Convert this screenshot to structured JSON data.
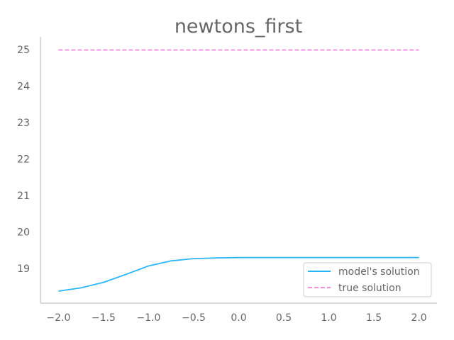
{
  "chart_data": {
    "type": "line",
    "title": "newtons_first",
    "xlabel": "",
    "ylabel": "",
    "xlim": [
      -2.2,
      2.2
    ],
    "ylim": [
      18.05,
      25.35
    ],
    "x_ticks": [
      "−2.0",
      "−1.5",
      "−1.0",
      "−0.5",
      "0.0",
      "0.5",
      "1.0",
      "1.5",
      "2.0"
    ],
    "x_tick_values": [
      -2.0,
      -1.5,
      -1.0,
      -0.5,
      0.0,
      0.5,
      1.0,
      1.5,
      2.0
    ],
    "y_ticks": [
      "19",
      "20",
      "21",
      "22",
      "23",
      "24",
      "25"
    ],
    "y_tick_values": [
      19,
      20,
      21,
      22,
      23,
      24,
      25
    ],
    "grid": false,
    "legend_position": "lower-right",
    "series": [
      {
        "name": "model's solution",
        "color": "#29b6f6",
        "style": "solid",
        "x": [
          -2.0,
          -1.75,
          -1.5,
          -1.25,
          -1.0,
          -0.75,
          -0.5,
          -0.25,
          0.0,
          0.5,
          1.0,
          1.5,
          2.0
        ],
        "y": [
          18.38,
          18.47,
          18.62,
          18.84,
          19.07,
          19.21,
          19.27,
          19.29,
          19.3,
          19.3,
          19.3,
          19.3,
          19.3
        ]
      },
      {
        "name": "true solution",
        "color": "#f48fdc",
        "style": "dashed",
        "x": [
          -2.0,
          2.0
        ],
        "y": [
          24.99,
          24.99
        ]
      }
    ]
  }
}
